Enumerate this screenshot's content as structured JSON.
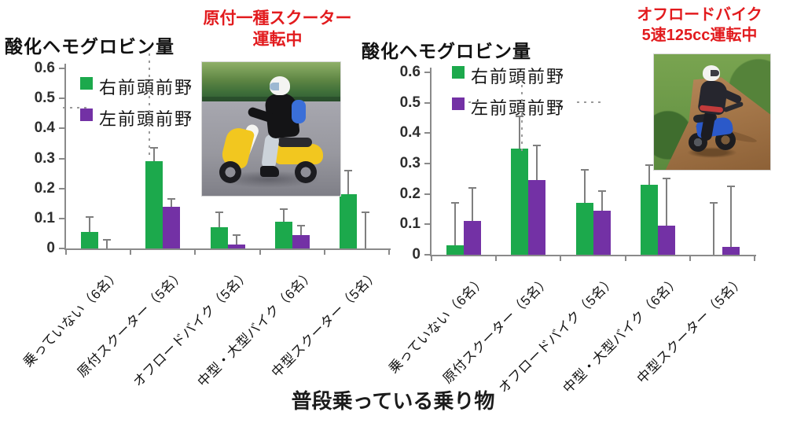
{
  "figure": {
    "x_axis_title": "普段乗っている乗り物",
    "colors": {
      "green": "#1ca94c",
      "purple": "#7331a5",
      "red": "#e21b1e",
      "axis_gray": "#8a8a8a"
    }
  },
  "photos": {
    "left": "yellow-scooter-rider-photo",
    "right": "blue-offroad-bike-rider-photo"
  },
  "charts": [
    {
      "title": "酸化ヘモグロビン量",
      "caption_lines": [
        "原付一種スクーター",
        "運転中"
      ],
      "chart_data": {
        "type": "bar",
        "categories": [
          "乗っていない（6名）",
          "原付スクーター（5名）",
          "オフロードバイク（5名）",
          "中型・大型バイク（6名）",
          "中型スクーター（5名）"
        ],
        "series": [
          {
            "name": "右前頭前野",
            "color": "#1ca94c",
            "values": [
              0.055,
              0.29,
              0.07,
              0.09,
              0.18
            ],
            "error_top": [
              0.105,
              0.335,
              0.12,
              0.13,
              0.26
            ]
          },
          {
            "name": "左前頭前野",
            "color": "#7331a5",
            "values": [
              0,
              0.14,
              0.013,
              0.045,
              0
            ],
            "error_top": [
              0.03,
              0.165,
              0.045,
              0.075,
              0.12
            ]
          }
        ],
        "title": "酸化ヘモグロビン量",
        "xlabel": "普段乗っている乗り物",
        "ylabel": "",
        "ylim": [
          0,
          0.6
        ],
        "yticks": [
          0,
          0.1,
          0.2,
          0.3,
          0.4,
          0.5,
          0.6
        ],
        "grid": false,
        "legend_position": "upper-left"
      }
    },
    {
      "title": "酸化ヘモグロビン量",
      "caption_lines": [
        "オフロードバイク",
        "5速125cc運転中"
      ],
      "chart_data": {
        "type": "bar",
        "categories": [
          "乗っていない（6名）",
          "原付スクーター（5名）",
          "オフロードバイク（5名）",
          "中型・大型バイク（6名）",
          "中型スクーター（5名）"
        ],
        "series": [
          {
            "name": "右前頭前野",
            "color": "#1ca94c",
            "values": [
              0.03,
              0.35,
              0.17,
              0.23,
              0
            ],
            "error_top": [
              0.17,
              0.455,
              0.28,
              0.295,
              0.17
            ]
          },
          {
            "name": "左前頭前野",
            "color": "#7331a5",
            "values": [
              0.11,
              0.245,
              0.145,
              0.095,
              0.025
            ],
            "error_top": [
              0.22,
              0.36,
              0.21,
              0.25,
              0.225
            ]
          }
        ],
        "title": "酸化ヘモグロビン量",
        "xlabel": "普段乗っている乗り物",
        "ylabel": "",
        "ylim": [
          0,
          0.6
        ],
        "yticks": [
          0,
          0.1,
          0.2,
          0.3,
          0.4,
          0.5,
          0.6
        ],
        "grid": false,
        "legend_position": "upper-left"
      }
    }
  ]
}
